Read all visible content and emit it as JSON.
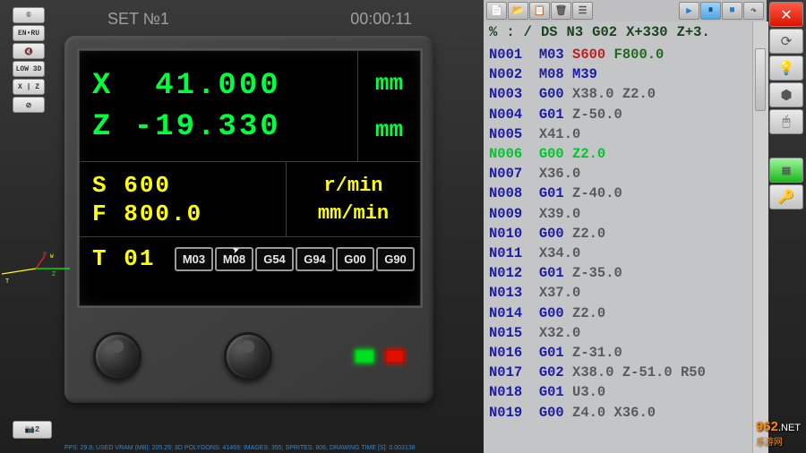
{
  "header": {
    "set_label": "SET №1",
    "time": "00:00:11"
  },
  "left_toolbar": {
    "copyright": "©",
    "lang": "EN•RU",
    "low3d": "LOW 3D",
    "xz": "X | Z"
  },
  "dro": {
    "x_label": "X",
    "x_value": "  41.000",
    "x_unit": "mm",
    "z_label": "Z",
    "z_value": " -19.330",
    "z_unit": "mm",
    "s_label": "S",
    "s_value": "600",
    "s_unit": "r/min",
    "f_label": "F",
    "f_value": "800.0",
    "f_unit": "mm/min",
    "t_label": "T",
    "t_value": "01",
    "g_buttons": [
      "M03",
      "M08",
      "G54",
      "G94",
      "G00",
      "G90"
    ],
    "colors": {
      "xz": "#00ff3c",
      "sfT": "#ffff00",
      "bg": "#000000",
      "grid": "#3d3d3d"
    }
  },
  "leds": {
    "green": "#00e020",
    "red": "#e01000"
  },
  "code": {
    "header_tokens": [
      "%",
      ":",
      "/",
      "DS",
      "N3",
      "G02",
      "X+330",
      "Z+3."
    ],
    "lines": [
      {
        "n": "N001",
        "t": [
          [
            "c-navy",
            "M03"
          ],
          [
            "c-red",
            "S600"
          ],
          [
            "c-dgreen",
            "F800.0"
          ]
        ]
      },
      {
        "n": "N002",
        "t": [
          [
            "c-navy",
            "M08"
          ],
          [
            "c-navy",
            "M39"
          ]
        ]
      },
      {
        "n": "N003",
        "t": [
          [
            "c-navy",
            "G00"
          ],
          [
            "c-gray",
            "X38.0"
          ],
          [
            "c-gray",
            "Z2.0"
          ]
        ]
      },
      {
        "n": "N004",
        "t": [
          [
            "c-navy",
            "G01"
          ],
          [
            "c-gray",
            "Z-50.0"
          ]
        ]
      },
      {
        "n": "N005",
        "t": [
          [
            "c-gray",
            "X41.0"
          ]
        ]
      },
      {
        "n": "N006",
        "hl": true,
        "t": [
          [
            "c-bgreen",
            "G00"
          ],
          [
            "c-bgreen",
            "Z2.0"
          ]
        ]
      },
      {
        "n": "N007",
        "t": [
          [
            "c-gray",
            "X36.0"
          ]
        ]
      },
      {
        "n": "N008",
        "t": [
          [
            "c-navy",
            "G01"
          ],
          [
            "c-gray",
            "Z-40.0"
          ]
        ]
      },
      {
        "n": "N009",
        "t": [
          [
            "c-gray",
            "X39.0"
          ]
        ]
      },
      {
        "n": "N010",
        "t": [
          [
            "c-navy",
            "G00"
          ],
          [
            "c-gray",
            "Z2.0"
          ]
        ]
      },
      {
        "n": "N011",
        "t": [
          [
            "c-gray",
            "X34.0"
          ]
        ]
      },
      {
        "n": "N012",
        "t": [
          [
            "c-navy",
            "G01"
          ],
          [
            "c-gray",
            "Z-35.0"
          ]
        ]
      },
      {
        "n": "N013",
        "t": [
          [
            "c-gray",
            "X37.0"
          ]
        ]
      },
      {
        "n": "N014",
        "t": [
          [
            "c-navy",
            "G00"
          ],
          [
            "c-gray",
            "Z2.0"
          ]
        ]
      },
      {
        "n": "N015",
        "t": [
          [
            "c-gray",
            "X32.0"
          ]
        ]
      },
      {
        "n": "N016",
        "t": [
          [
            "c-navy",
            "G01"
          ],
          [
            "c-gray",
            "Z-31.0"
          ]
        ]
      },
      {
        "n": "N017",
        "t": [
          [
            "c-navy",
            "G02"
          ],
          [
            "c-gray",
            "X38.0"
          ],
          [
            "c-gray",
            "Z-51.0"
          ],
          [
            "c-gray",
            "R50"
          ]
        ]
      },
      {
        "n": "N018",
        "t": [
          [
            "c-navy",
            "G01"
          ],
          [
            "c-gray",
            "U3.0"
          ]
        ]
      },
      {
        "n": "N019",
        "t": [
          [
            "c-navy",
            "G00"
          ],
          [
            "c-gray",
            "Z4.0"
          ],
          [
            "c-gray",
            "X36.0"
          ]
        ]
      }
    ]
  },
  "right_col": {
    "close": "✕"
  },
  "camera_btn": "📷2",
  "stats": "FPS: 29.8; USED VRAM (MB): 205.29; 3D POLYGONS: 41469; IMAGES: 355; SPRITES: 806; DRAWING TIME [S]: 0.003138",
  "watermark": {
    "big": "962",
    "net": ".NET",
    "cn": "乐游网"
  }
}
